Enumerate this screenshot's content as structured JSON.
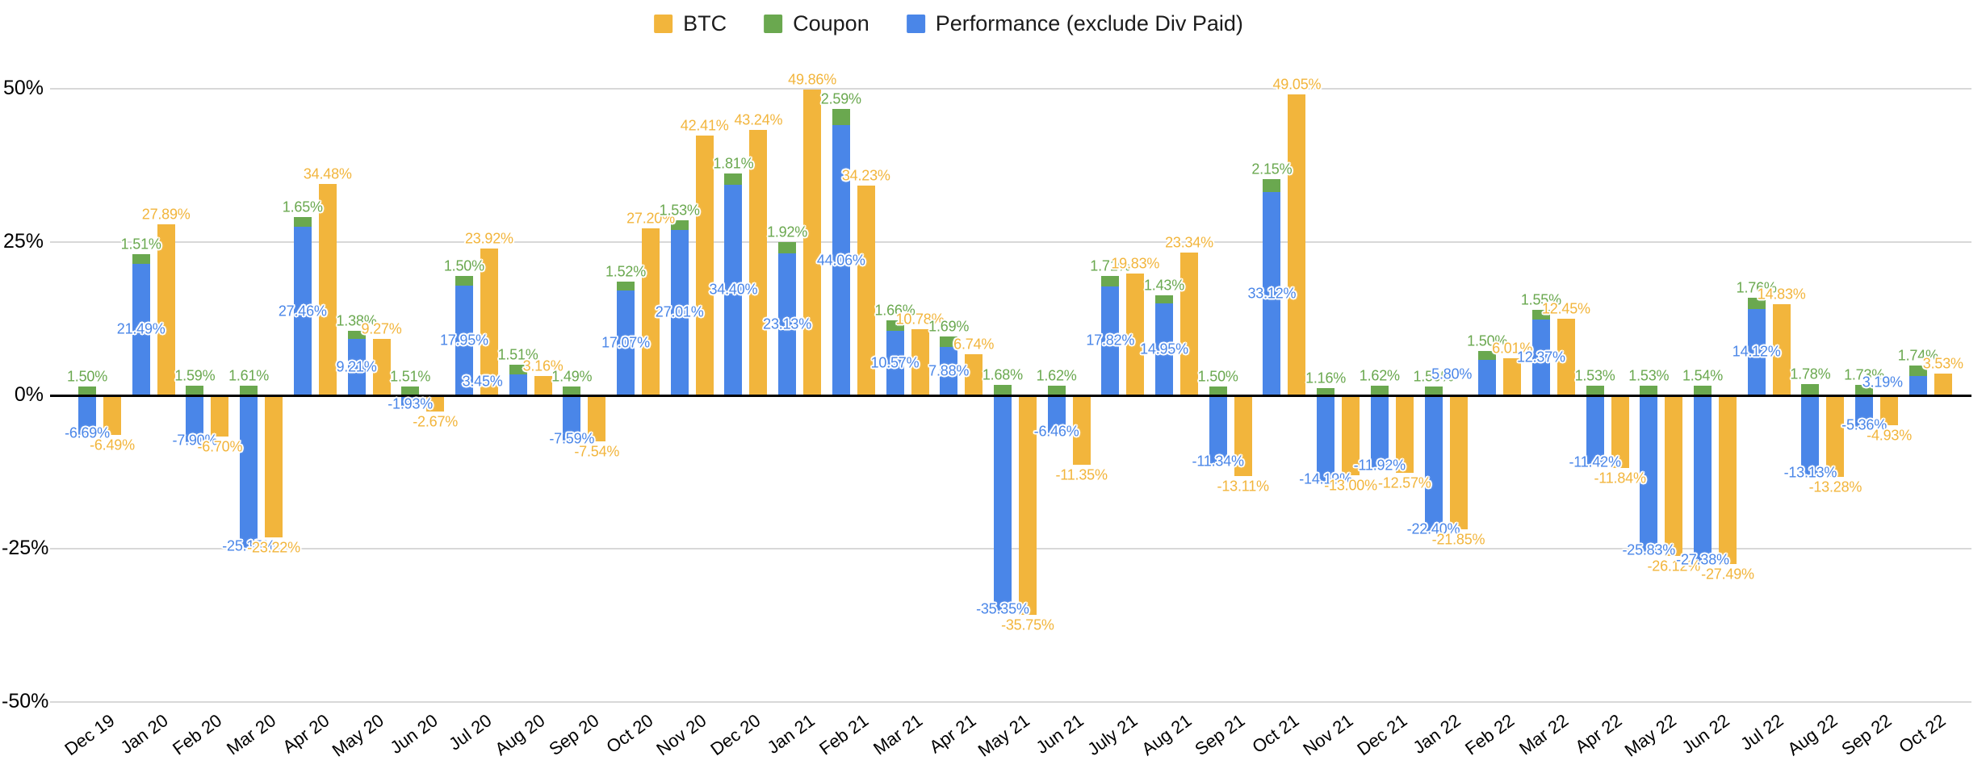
{
  "legend": [
    {
      "label": "BTC",
      "color": "#F2B53C"
    },
    {
      "label": "Coupon",
      "color": "#6AA84F"
    },
    {
      "label": "Performance (exclude Div Paid)",
      "color": "#4A86E8"
    }
  ],
  "y_axis": {
    "ticks": [
      "50%",
      "25%",
      "0%",
      "-25%",
      "-50%"
    ],
    "values": [
      50,
      25,
      0,
      -25,
      -50
    ]
  },
  "chart_data": {
    "type": "bar",
    "title": "",
    "xlabel": "",
    "ylabel": "",
    "ylim": [
      -50,
      50
    ],
    "grid": true,
    "legend_position": "top",
    "value_label_format": "0.00%",
    "structure": "Coupon stacked on Performance in one column; BTC as separate column per month",
    "categories": [
      "Dec 19",
      "Jan 20",
      "Feb 20",
      "Mar 20",
      "Apr 20",
      "May 20",
      "Jun 20",
      "Jul 20",
      "Aug 20",
      "Sep 20",
      "Oct 20",
      "Nov 20",
      "Dec 20",
      "Jan 21",
      "Feb 21",
      "Mar 21",
      "Apr 21",
      "May 21",
      "Jun 21",
      "July 21",
      "Aug 21",
      "Sep 21",
      "Oct 21",
      "Nov 21",
      "Dec 21",
      "Jan 22",
      "Feb 22",
      "Mar 22",
      "Apr 22",
      "May 22",
      "Jun 22",
      "Jul 22",
      "Aug 22",
      "Sep 22",
      "Oct 22"
    ],
    "series": [
      {
        "name": "BTC",
        "color": "#F2B53C",
        "values": [
          -6.49,
          27.89,
          -6.7,
          -23.22,
          34.48,
          9.27,
          -2.67,
          23.92,
          3.16,
          -7.54,
          27.2,
          42.41,
          43.24,
          49.86,
          34.23,
          10.78,
          6.74,
          -35.75,
          -11.35,
          19.83,
          23.34,
          -13.11,
          49.05,
          -13.0,
          -12.57,
          -21.85,
          6.01,
          12.45,
          -11.84,
          -26.12,
          -27.49,
          14.83,
          -13.28,
          -4.93,
          3.53
        ]
      },
      {
        "name": "Coupon",
        "color": "#6AA84F",
        "values": [
          1.5,
          1.51,
          1.59,
          1.61,
          1.65,
          1.38,
          1.51,
          1.5,
          1.51,
          1.49,
          1.52,
          1.53,
          1.81,
          1.92,
          2.59,
          1.66,
          1.69,
          1.68,
          1.62,
          1.71,
          1.43,
          1.5,
          2.15,
          1.16,
          1.62,
          1.5,
          1.5,
          1.55,
          1.53,
          1.53,
          1.54,
          1.76,
          1.78,
          1.73,
          1.74
        ]
      },
      {
        "name": "Performance (exclude Div Paid)",
        "color": "#4A86E8",
        "values": [
          -6.69,
          21.49,
          -7.9,
          -25.15,
          27.46,
          9.21,
          -1.93,
          17.95,
          3.45,
          -7.59,
          17.07,
          27.01,
          34.4,
          23.13,
          44.06,
          10.57,
          7.88,
          -35.35,
          -6.46,
          17.82,
          14.95,
          -11.34,
          33.12,
          -14.19,
          -11.92,
          -22.4,
          5.8,
          12.37,
          -11.42,
          -25.83,
          -27.38,
          14.12,
          -13.13,
          -5.36,
          3.19
        ]
      }
    ]
  }
}
